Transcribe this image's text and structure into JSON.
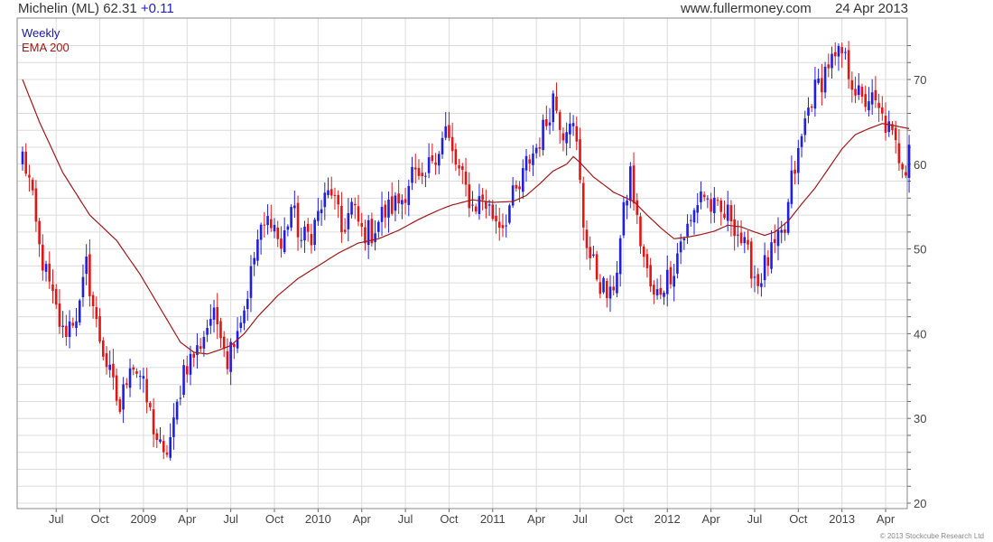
{
  "header": {
    "symbol": "Michelin (ML)",
    "price": "62.31",
    "change": "+0.11",
    "site": "www.fullermoney.com",
    "date": "24 Apr 2013"
  },
  "legend": {
    "weekly": "Weekly",
    "ema": "EMA 200"
  },
  "copyright": "© 2013 Stockcube Research Ltd",
  "colors": {
    "up": "#1f1fe0",
    "down": "#e01616",
    "ema": "#a01818",
    "grid": "#dcdcdc",
    "axis": "#666666"
  },
  "chart_data": {
    "type": "candlestick",
    "grid": true,
    "y_axis_side": "right",
    "ylim": [
      20,
      75
    ],
    "yticks": [
      20,
      30,
      40,
      50,
      60,
      70
    ],
    "x_tick_labels": [
      "Jul",
      "Oct",
      "2009",
      "Apr",
      "Jul",
      "Oct",
      "2010",
      "Apr",
      "Jul",
      "Oct",
      "2011",
      "Apr",
      "Jul",
      "Oct",
      "2012",
      "Apr",
      "Jul",
      "Oct",
      "2013",
      "Apr"
    ],
    "x_tick_weeks": [
      10,
      23,
      36,
      49,
      62,
      75,
      88,
      101,
      114,
      127,
      140,
      153,
      166,
      179,
      192,
      205,
      218,
      231,
      244,
      257
    ],
    "week_count": 265,
    "close_anchors": [
      [
        0,
        61
      ],
      [
        2,
        58
      ],
      [
        5,
        50
      ],
      [
        9,
        44
      ],
      [
        12,
        40
      ],
      [
        17,
        43
      ],
      [
        19,
        48
      ],
      [
        22,
        41
      ],
      [
        26,
        35
      ],
      [
        29,
        31
      ],
      [
        32,
        37
      ],
      [
        35,
        35
      ],
      [
        39,
        29
      ],
      [
        42,
        25
      ],
      [
        45,
        29
      ],
      [
        48,
        36
      ],
      [
        52,
        38
      ],
      [
        56,
        42
      ],
      [
        59,
        41
      ],
      [
        61,
        37
      ],
      [
        63,
        40
      ],
      [
        66,
        43
      ],
      [
        70,
        51
      ],
      [
        74,
        54
      ],
      [
        77,
        50
      ],
      [
        80,
        55
      ],
      [
        83,
        51
      ],
      [
        86,
        52
      ],
      [
        89,
        55
      ],
      [
        92,
        57
      ],
      [
        95,
        52
      ],
      [
        98,
        55
      ],
      [
        101,
        52
      ],
      [
        104,
        52
      ],
      [
        107,
        54
      ],
      [
        110,
        55
      ],
      [
        113,
        56
      ],
      [
        116,
        59
      ],
      [
        119,
        57
      ],
      [
        122,
        61
      ],
      [
        124,
        62
      ],
      [
        126,
        64
      ],
      [
        128,
        61
      ],
      [
        131,
        58
      ],
      [
        134,
        55
      ],
      [
        137,
        56
      ],
      [
        140,
        54
      ],
      [
        143,
        53
      ],
      [
        146,
        56
      ],
      [
        148,
        57
      ],
      [
        150,
        60
      ],
      [
        153,
        62
      ],
      [
        156,
        65
      ],
      [
        158,
        68
      ],
      [
        161,
        64
      ],
      [
        163,
        66
      ],
      [
        165,
        62
      ],
      [
        167,
        53
      ],
      [
        169,
        49
      ],
      [
        172,
        46
      ],
      [
        175,
        44
      ],
      [
        177,
        48
      ],
      [
        179,
        54
      ],
      [
        181,
        59
      ],
      [
        183,
        53
      ],
      [
        186,
        47
      ],
      [
        188,
        44
      ],
      [
        191,
        46
      ],
      [
        194,
        48
      ],
      [
        196,
        51
      ],
      [
        199,
        53
      ],
      [
        202,
        57
      ],
      [
        205,
        55
      ],
      [
        208,
        54
      ],
      [
        211,
        54
      ],
      [
        214,
        51
      ],
      [
        217,
        48
      ],
      [
        219,
        46
      ],
      [
        221,
        48
      ],
      [
        224,
        50
      ],
      [
        227,
        52
      ],
      [
        229,
        58
      ],
      [
        231,
        61
      ],
      [
        233,
        65
      ],
      [
        235,
        68
      ],
      [
        238,
        70
      ],
      [
        240,
        72
      ],
      [
        242,
        72
      ],
      [
        244,
        73
      ],
      [
        246,
        71
      ],
      [
        248,
        69
      ],
      [
        250,
        67
      ],
      [
        252,
        68
      ],
      [
        255,
        66
      ],
      [
        258,
        64
      ],
      [
        261,
        61
      ],
      [
        263,
        60
      ],
      [
        264,
        62.31
      ]
    ],
    "ema_anchors": [
      [
        0,
        70
      ],
      [
        5,
        65
      ],
      [
        12,
        59
      ],
      [
        20,
        54
      ],
      [
        28,
        51
      ],
      [
        35,
        47
      ],
      [
        41,
        43
      ],
      [
        47,
        39
      ],
      [
        51,
        37.8
      ],
      [
        55,
        37.6
      ],
      [
        58,
        38
      ],
      [
        62,
        38.6
      ],
      [
        66,
        40
      ],
      [
        70,
        42
      ],
      [
        76,
        44.5
      ],
      [
        82,
        46.5
      ],
      [
        88,
        48
      ],
      [
        94,
        49.5
      ],
      [
        100,
        50.7
      ],
      [
        106,
        51.2
      ],
      [
        112,
        52.2
      ],
      [
        118,
        53.5
      ],
      [
        124,
        54.6
      ],
      [
        128,
        55.2
      ],
      [
        134,
        55.8
      ],
      [
        140,
        55.5
      ],
      [
        146,
        55.6
      ],
      [
        150,
        56.3
      ],
      [
        154,
        57.7
      ],
      [
        158,
        59.2
      ],
      [
        162,
        60
      ],
      [
        164,
        60.9
      ],
      [
        166,
        60.2
      ],
      [
        170,
        58.5
      ],
      [
        176,
        56.7
      ],
      [
        182,
        55.6
      ],
      [
        186,
        54
      ],
      [
        190,
        52.5
      ],
      [
        194,
        51.2
      ],
      [
        198,
        51.4
      ],
      [
        202,
        51.7
      ],
      [
        206,
        52.1
      ],
      [
        210,
        52.8
      ],
      [
        214,
        52.6
      ],
      [
        218,
        52
      ],
      [
        221,
        51.6
      ],
      [
        224,
        52
      ],
      [
        228,
        53.3
      ],
      [
        232,
        55.3
      ],
      [
        236,
        57.2
      ],
      [
        240,
        59.5
      ],
      [
        244,
        61.8
      ],
      [
        248,
        63.5
      ],
      [
        252,
        64.2
      ],
      [
        256,
        64.8
      ],
      [
        259,
        64.6
      ],
      [
        264,
        64.2
      ]
    ]
  }
}
